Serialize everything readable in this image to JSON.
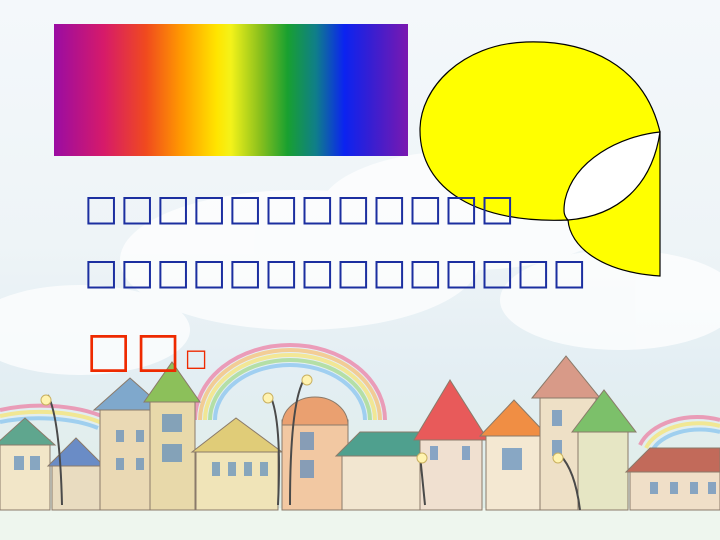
{
  "slide": {
    "question_line_1": "□□□□□□□□□□□□",
    "question_line_2": "□□□□□□□□□□□□□□",
    "answer_main": "□□",
    "answer_punct": "□"
  },
  "colors": {
    "question_text": "#1c2fa0",
    "answer_text": "#ee2a00",
    "shape_fill": "#ffff00",
    "shape_stroke": "#000000"
  }
}
